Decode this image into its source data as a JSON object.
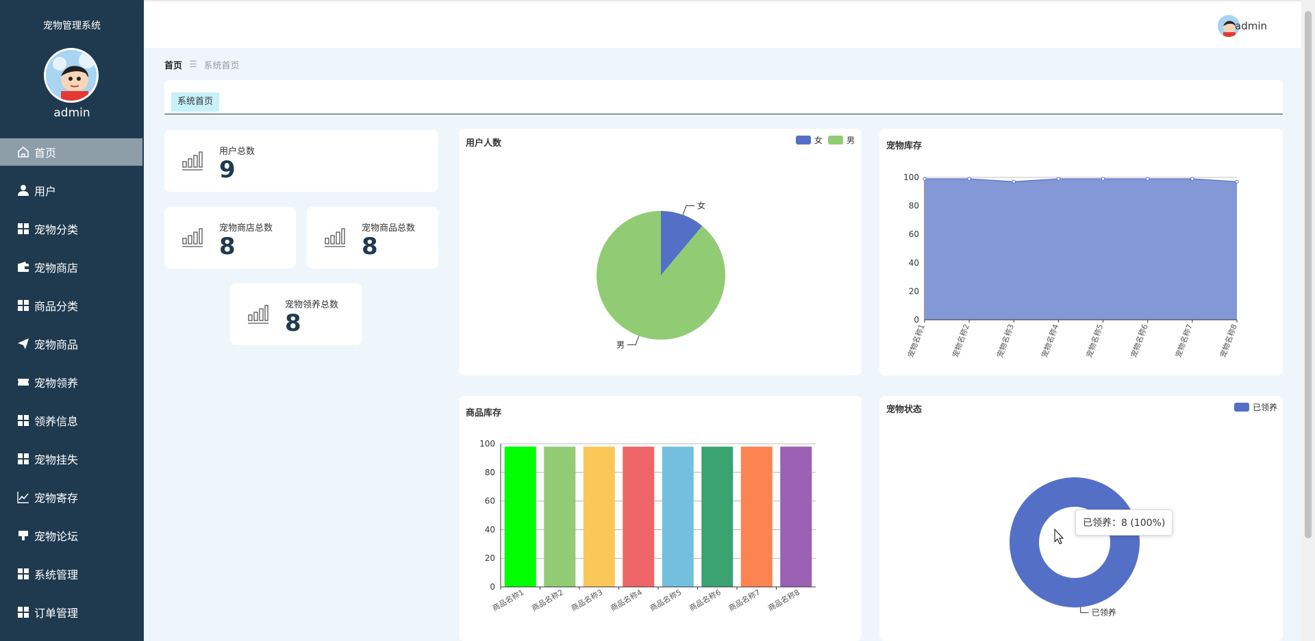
{
  "sidebar": {
    "app_title": "宠物管理系统",
    "username": "admin",
    "items": [
      {
        "label": "首页",
        "icon": "home-icon",
        "active": true
      },
      {
        "label": "用户",
        "icon": "user-icon"
      },
      {
        "label": "宠物分类",
        "icon": "grid-icon"
      },
      {
        "label": "宠物商店",
        "icon": "wallet-icon"
      },
      {
        "label": "商品分类",
        "icon": "grid-icon"
      },
      {
        "label": "宠物商品",
        "icon": "paper-plane-icon"
      },
      {
        "label": "宠物领养",
        "icon": "ticket-icon"
      },
      {
        "label": "领养信息",
        "icon": "grid-icon"
      },
      {
        "label": "宠物挂失",
        "icon": "grid-icon"
      },
      {
        "label": "宠物寄存",
        "icon": "line-chart-icon"
      },
      {
        "label": "宠物论坛",
        "icon": "trophy-icon"
      },
      {
        "label": "系统管理",
        "icon": "grid-icon"
      },
      {
        "label": "订单管理",
        "icon": "grid-icon"
      }
    ]
  },
  "topbar": {
    "username": "admin"
  },
  "breadcrumb": {
    "home": "首页",
    "separator": "☰",
    "current": "系统首页"
  },
  "tabs": [
    {
      "label": "系统首页"
    }
  ],
  "stats": {
    "users": {
      "label": "用户总数",
      "value": "9"
    },
    "shops": {
      "label": "宠物商店总数",
      "value": "8"
    },
    "goods": {
      "label": "宠物商品总数",
      "value": "8"
    },
    "adopt": {
      "label": "宠物领养总数",
      "value": "8"
    }
  },
  "colors": {
    "sidebar_bg": "#1f3a4f",
    "blue": "#5470c6",
    "green": "#91cc75",
    "page_bg": "#eef6fc"
  },
  "chart_data": [
    {
      "type": "pie",
      "title": "用户人数",
      "legend": [
        "女",
        "男"
      ],
      "labels": [
        "女",
        "男"
      ],
      "values": [
        1,
        8
      ],
      "colors": [
        "#5470c6",
        "#91cc75"
      ],
      "legend_position": "top-right"
    },
    {
      "type": "area",
      "title": "宠物库存",
      "categories": [
        "宠物名称1",
        "宠物名称2",
        "宠物名称3",
        "宠物名称4",
        "宠物名称5",
        "宠物名称6",
        "宠物名称7",
        "宠物名称8"
      ],
      "values": [
        99,
        99,
        97,
        99,
        99,
        99,
        99,
        97
      ],
      "ylim": [
        0,
        100
      ],
      "yticks": [
        "0",
        "20",
        "40",
        "60",
        "80",
        "100"
      ],
      "color": "#8497d6"
    },
    {
      "type": "bar",
      "title": "商品库存",
      "categories": [
        "商品名称1",
        "商品名称2",
        "商品名称3",
        "商品名称4",
        "商品名称5",
        "商品名称6",
        "商品名称7",
        "商品名称8"
      ],
      "values": [
        98,
        98,
        98,
        98,
        98,
        98,
        98,
        98
      ],
      "ylim": [
        0,
        100
      ],
      "yticks": [
        "0",
        "20",
        "40",
        "60",
        "80",
        "100"
      ],
      "colors": [
        "#00ff00",
        "#91cc75",
        "#fac858",
        "#ee6666",
        "#73c0de",
        "#3ba272",
        "#fc8452",
        "#9a60b4"
      ]
    },
    {
      "type": "pie",
      "title": "宠物状态",
      "legend": [
        "已领养"
      ],
      "labels": [
        "已领养"
      ],
      "values": [
        8
      ],
      "colors": [
        "#5470c6"
      ],
      "tooltip": "已领养：8 (100%)",
      "legend_position": "top-right"
    }
  ]
}
